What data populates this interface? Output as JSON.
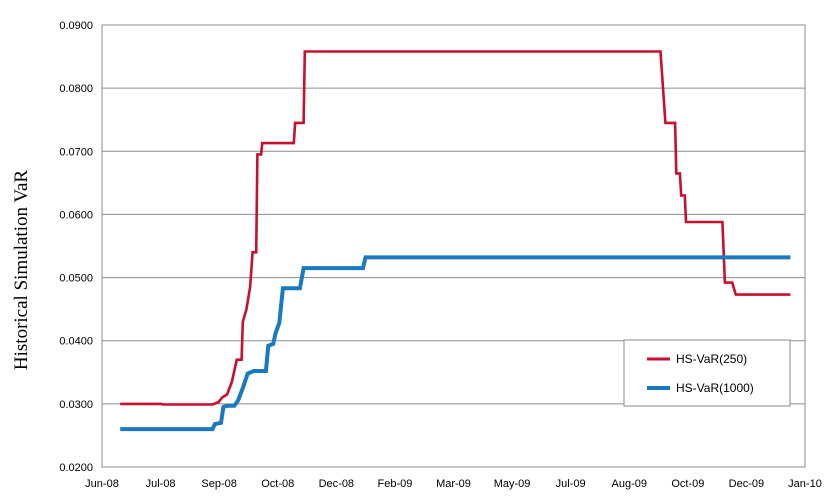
{
  "chart_data": {
    "type": "line",
    "ylabel": "Historical Simulation VaR",
    "xlabel": "",
    "ylim": [
      0.02,
      0.09
    ],
    "yticks": [
      "0.0200",
      "0.0300",
      "0.0400",
      "0.0500",
      "0.0600",
      "0.0700",
      "0.0800",
      "0.0900"
    ],
    "xticks": [
      "Jun-08",
      "Jul-08",
      "Sep-08",
      "Oct-08",
      "Dec-08",
      "Feb-09",
      "Mar-09",
      "May-09",
      "Jul-09",
      "Aug-09",
      "Oct-09",
      "Dec-09",
      "Jan-10"
    ],
    "grid": "horizontal",
    "legend_position": "bottom-right",
    "series": [
      {
        "name": "HS-VaR(250)",
        "color": "#c8102e",
        "points": [
          [
            "2008-06-16",
            0.03
          ],
          [
            "2008-07-20",
            0.03
          ],
          [
            "2008-07-21",
            0.0299
          ],
          [
            "2008-08-31",
            0.0299
          ],
          [
            "2008-09-05",
            0.0303
          ],
          [
            "2008-09-08",
            0.031
          ],
          [
            "2008-09-12",
            0.0315
          ],
          [
            "2008-09-16",
            0.0335
          ],
          [
            "2008-09-20",
            0.037
          ],
          [
            "2008-09-24",
            0.037
          ],
          [
            "2008-09-25",
            0.043
          ],
          [
            "2008-09-28",
            0.045
          ],
          [
            "2008-10-01",
            0.0485
          ],
          [
            "2008-10-03",
            0.054
          ],
          [
            "2008-10-06",
            0.054
          ],
          [
            "2008-10-07",
            0.0695
          ],
          [
            "2008-10-10",
            0.0695
          ],
          [
            "2008-10-11",
            0.0713
          ],
          [
            "2008-11-06",
            0.0713
          ],
          [
            "2008-11-07",
            0.0745
          ],
          [
            "2008-11-14",
            0.0745
          ],
          [
            "2008-11-15",
            0.0858
          ],
          [
            "2009-09-04",
            0.0858
          ],
          [
            "2009-09-08",
            0.0745
          ],
          [
            "2009-09-16",
            0.0745
          ],
          [
            "2009-09-17",
            0.0665
          ],
          [
            "2009-09-20",
            0.0665
          ],
          [
            "2009-09-21",
            0.063
          ],
          [
            "2009-09-24",
            0.063
          ],
          [
            "2009-09-25",
            0.0588
          ],
          [
            "2009-10-25",
            0.0588
          ],
          [
            "2009-10-27",
            0.0492
          ],
          [
            "2009-11-02",
            0.0492
          ],
          [
            "2009-11-05",
            0.0473
          ],
          [
            "2009-12-20",
            0.0473
          ]
        ]
      },
      {
        "name": "HS-VaR(1000)",
        "color": "#1a7abf",
        "points": [
          [
            "2008-06-16",
            0.026
          ],
          [
            "2008-08-31",
            0.026
          ],
          [
            "2008-09-02",
            0.0268
          ],
          [
            "2008-09-07",
            0.027
          ],
          [
            "2008-09-09",
            0.0295
          ],
          [
            "2008-09-12",
            0.0297
          ],
          [
            "2008-09-18",
            0.0297
          ],
          [
            "2008-09-21",
            0.0305
          ],
          [
            "2008-09-25",
            0.0325
          ],
          [
            "2008-09-29",
            0.0348
          ],
          [
            "2008-10-04",
            0.0352
          ],
          [
            "2008-10-14",
            0.0352
          ],
          [
            "2008-10-16",
            0.0392
          ],
          [
            "2008-10-20",
            0.0395
          ],
          [
            "2008-10-22",
            0.0412
          ],
          [
            "2008-10-25",
            0.0428
          ],
          [
            "2008-10-28",
            0.0483
          ],
          [
            "2008-11-11",
            0.0483
          ],
          [
            "2008-11-14",
            0.0515
          ],
          [
            "2009-01-02",
            0.0515
          ],
          [
            "2009-01-04",
            0.0532
          ],
          [
            "2009-12-20",
            0.0532
          ]
        ]
      }
    ]
  }
}
